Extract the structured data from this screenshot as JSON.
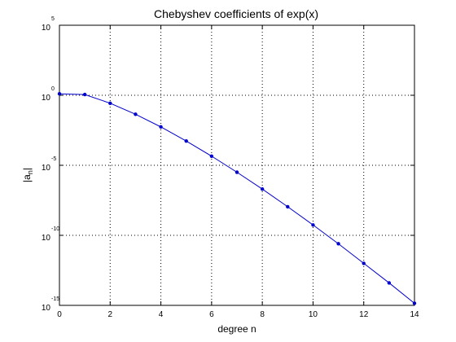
{
  "chart_data": {
    "type": "line",
    "title": "Chebyshev coefficients of exp(x)",
    "xlabel": "degree n",
    "ylabel": {
      "base": "|a",
      "sub": "n",
      "close": "|"
    },
    "xlim": [
      0,
      14
    ],
    "ylim": [
      1e-15,
      100000.0
    ],
    "yscale": "log",
    "grid": true,
    "x_ticks": [
      "0",
      "2",
      "4",
      "6",
      "8",
      "10",
      "12",
      "14"
    ],
    "y_ticks": [
      {
        "base": "10",
        "exp": "5"
      },
      {
        "base": "10",
        "exp": "0"
      },
      {
        "base": "10",
        "exp": "-5"
      },
      {
        "base": "10",
        "exp": "-10"
      },
      {
        "base": "10",
        "exp": "-15"
      }
    ],
    "series": [
      {
        "color": "#0000cc",
        "marker": "dot",
        "x": [
          0,
          1,
          2,
          3,
          4,
          5,
          6,
          7,
          8,
          9,
          10,
          11,
          12,
          13,
          14
        ],
        "y": [
          1.27,
          1.13,
          0.27,
          0.044,
          0.0055,
          0.00054,
          4.5e-05,
          3.2e-06,
          2e-07,
          1.1e-08,
          5.5e-10,
          2.5e-11,
          1e-12,
          4e-14,
          1.4e-15
        ]
      }
    ]
  }
}
